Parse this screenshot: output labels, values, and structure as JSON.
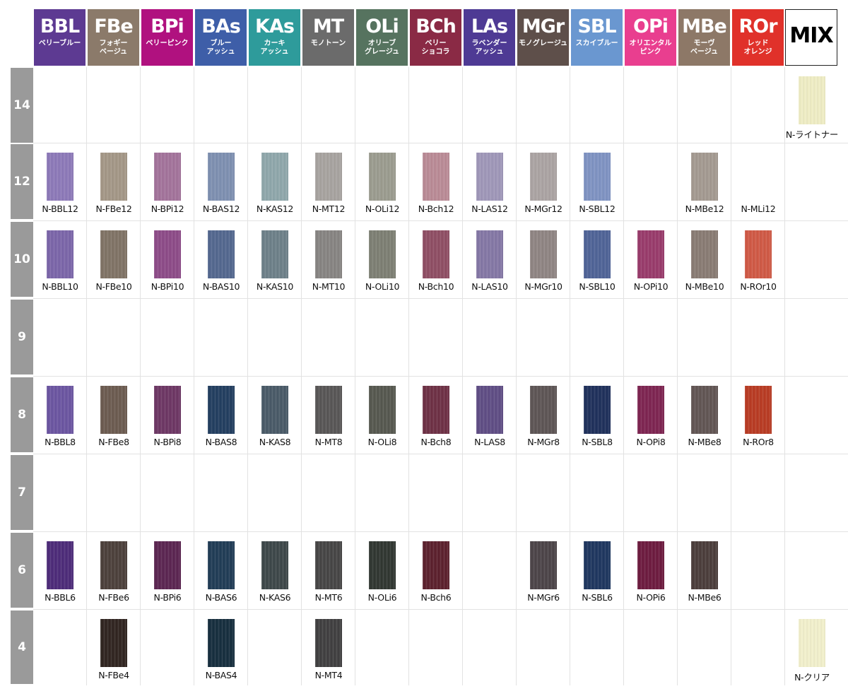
{
  "columns": [
    {
      "code": "BBL",
      "jp": "ベリーブルー",
      "color": "#5d3a92"
    },
    {
      "code": "FBe",
      "jp": "フォギー\nベージュ",
      "color": "#8b7a6a"
    },
    {
      "code": "BPi",
      "jp": "ベリーピンク",
      "color": "#b0117f"
    },
    {
      "code": "BAs",
      "jp": "ブルー\nアッシュ",
      "color": "#3e5ea8"
    },
    {
      "code": "KAs",
      "jp": "カーキ\nアッシュ",
      "color": "#2e9b9b"
    },
    {
      "code": "MT",
      "jp": "モノトーン",
      "color": "#6b6b6b"
    },
    {
      "code": "OLi",
      "jp": "オリーブ\nグレージュ",
      "color": "#56735f"
    },
    {
      "code": "BCh",
      "jp": "ベリー\nショコラ",
      "color": "#8a2a45"
    },
    {
      "code": "LAs",
      "jp": "ラベンダー\nアッシュ",
      "color": "#4e3a94"
    },
    {
      "code": "MGr",
      "jp": "モノグレージュ",
      "color": "#5e4f4a"
    },
    {
      "code": "SBL",
      "jp": "スカイブルー",
      "color": "#6a97d0"
    },
    {
      "code": "OPi",
      "jp": "オリエンタル\nピンク",
      "color": "#e93e8f"
    },
    {
      "code": "MBe",
      "jp": "モーヴ\nベージュ",
      "color": "#8d7867"
    },
    {
      "code": "ROr",
      "jp": "レッド\nオレンジ",
      "color": "#e0312a"
    },
    {
      "code": "MIX",
      "jp": "",
      "color": "#ffffff"
    }
  ],
  "rows": [
    "14",
    "12",
    "10",
    "9",
    "8",
    "7",
    "6",
    "4"
  ],
  "swatches": [
    {
      "row": 0,
      "col": 14,
      "label": "N-ライトナー",
      "color": "#eeecc4"
    },
    {
      "row": 1,
      "col": 0,
      "label": "N-BBL12",
      "color": "#8c78b8"
    },
    {
      "row": 1,
      "col": 1,
      "label": "N-FBe12",
      "color": "#a39686"
    },
    {
      "row": 1,
      "col": 2,
      "label": "N-BPi12",
      "color": "#a2729a"
    },
    {
      "row": 1,
      "col": 3,
      "label": "N-BAS12",
      "color": "#7d8fb0"
    },
    {
      "row": 1,
      "col": 4,
      "label": "N-KAS12",
      "color": "#8ea6aa"
    },
    {
      "row": 1,
      "col": 5,
      "label": "N-MT12",
      "color": "#a6a29f"
    },
    {
      "row": 1,
      "col": 6,
      "label": "N-OLi12",
      "color": "#9a9b8e"
    },
    {
      "row": 1,
      "col": 7,
      "label": "N-Bch12",
      "color": "#b98a95"
    },
    {
      "row": 1,
      "col": 8,
      "label": "N-LAS12",
      "color": "#9e96b8"
    },
    {
      "row": 1,
      "col": 9,
      "label": "N-MGr12",
      "color": "#aaa3a2"
    },
    {
      "row": 1,
      "col": 10,
      "label": "N-SBL12",
      "color": "#7e92c2"
    },
    {
      "row": 1,
      "col": 12,
      "label": "N-MBe12",
      "color": "#a39990"
    },
    {
      "row": 1,
      "col": 13,
      "label": "N-MLi12",
      "color": null
    },
    {
      "row": 2,
      "col": 0,
      "label": "N-BBL10",
      "color": "#7a64a8"
    },
    {
      "row": 2,
      "col": 1,
      "label": "N-FBe10",
      "color": "#7f7264"
    },
    {
      "row": 2,
      "col": 2,
      "label": "N-BPi10",
      "color": "#8c4a87"
    },
    {
      "row": 2,
      "col": 3,
      "label": "N-BAS10",
      "color": "#52668e"
    },
    {
      "row": 2,
      "col": 4,
      "label": "N-KAS10",
      "color": "#6c7f88"
    },
    {
      "row": 2,
      "col": 5,
      "label": "N-MT10",
      "color": "#868381"
    },
    {
      "row": 2,
      "col": 6,
      "label": "N-OLi10",
      "color": "#7c7e72"
    },
    {
      "row": 2,
      "col": 7,
      "label": "N-Bch10",
      "color": "#8e4d63"
    },
    {
      "row": 2,
      "col": 8,
      "label": "N-LAS10",
      "color": "#8376a4"
    },
    {
      "row": 2,
      "col": 9,
      "label": "N-MGr10",
      "color": "#8e8482"
    },
    {
      "row": 2,
      "col": 10,
      "label": "N-SBL10",
      "color": "#4e6296"
    },
    {
      "row": 2,
      "col": 11,
      "label": "N-OPi10",
      "color": "#983a6a"
    },
    {
      "row": 2,
      "col": 12,
      "label": "N-MBe10",
      "color": "#887a72"
    },
    {
      "row": 2,
      "col": 13,
      "label": "N-ROr10",
      "color": "#cf5844"
    },
    {
      "row": 4,
      "col": 0,
      "label": "N-BBL8",
      "color": "#6a54a0"
    },
    {
      "row": 4,
      "col": 1,
      "label": "N-FBe8",
      "color": "#6b5a4f"
    },
    {
      "row": 4,
      "col": 2,
      "label": "N-BPi8",
      "color": "#6c3563"
    },
    {
      "row": 4,
      "col": 3,
      "label": "N-BAS8",
      "color": "#213d5f"
    },
    {
      "row": 4,
      "col": 4,
      "label": "N-KAS8",
      "color": "#485966"
    },
    {
      "row": 4,
      "col": 5,
      "label": "N-MT8",
      "color": "#575555"
    },
    {
      "row": 4,
      "col": 6,
      "label": "N-OLi8",
      "color": "#55574e"
    },
    {
      "row": 4,
      "col": 7,
      "label": "N-Bch8",
      "color": "#6d2f44"
    },
    {
      "row": 4,
      "col": 8,
      "label": "N-LAS8",
      "color": "#5e4c84"
    },
    {
      "row": 4,
      "col": 9,
      "label": "N-MGr8",
      "color": "#5c5454"
    },
    {
      "row": 4,
      "col": 10,
      "label": "N-SBL8",
      "color": "#1e2f5a"
    },
    {
      "row": 4,
      "col": 11,
      "label": "N-OPi8",
      "color": "#7d2350"
    },
    {
      "row": 4,
      "col": 12,
      "label": "N-MBe8",
      "color": "#605452"
    },
    {
      "row": 4,
      "col": 13,
      "label": "N-ROr8",
      "color": "#b83a22"
    },
    {
      "row": 6,
      "col": 0,
      "label": "N-BBL6",
      "color": "#4c2a78"
    },
    {
      "row": 6,
      "col": 1,
      "label": "N-FBe6",
      "color": "#4b3f3a"
    },
    {
      "row": 6,
      "col": 2,
      "label": "N-BPi6",
      "color": "#5a2450"
    },
    {
      "row": 6,
      "col": 3,
      "label": "N-BAS6",
      "color": "#1f3b55"
    },
    {
      "row": 6,
      "col": 4,
      "label": "N-KAS6",
      "color": "#3c4648"
    },
    {
      "row": 6,
      "col": 5,
      "label": "N-MT6",
      "color": "#454444"
    },
    {
      "row": 6,
      "col": 6,
      "label": "N-OLi6",
      "color": "#2f3530"
    },
    {
      "row": 6,
      "col": 7,
      "label": "N-Bch6",
      "color": "#5b1f2c"
    },
    {
      "row": 6,
      "col": 9,
      "label": "N-MGr6",
      "color": "#4b4347"
    },
    {
      "row": 6,
      "col": 10,
      "label": "N-SBL6",
      "color": "#1d355e"
    },
    {
      "row": 6,
      "col": 11,
      "label": "N-OPi6",
      "color": "#6c1a3e"
    },
    {
      "row": 6,
      "col": 12,
      "label": "N-MBe6",
      "color": "#4a3c3a"
    },
    {
      "row": 7,
      "col": 1,
      "label": "N-FBe4",
      "color": "#2f241f"
    },
    {
      "row": 7,
      "col": 3,
      "label": "N-BAS4",
      "color": "#152d3d"
    },
    {
      "row": 7,
      "col": 5,
      "label": "N-MT4",
      "color": "#3f3e3f"
    },
    {
      "row": 7,
      "col": 14,
      "label": "N-クリア",
      "color": "#f1efcb"
    }
  ]
}
